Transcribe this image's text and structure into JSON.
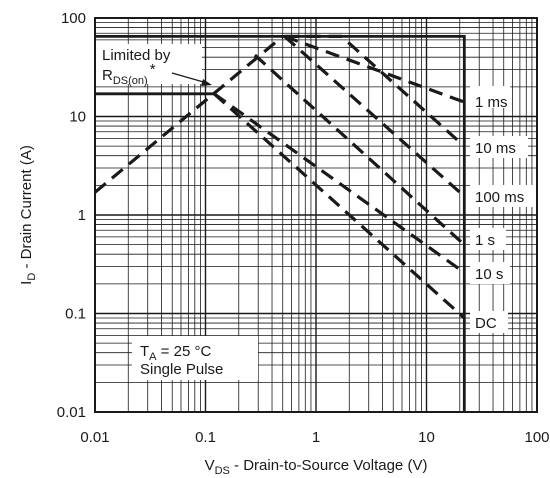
{
  "chart_data": {
    "type": "line",
    "title": "",
    "xlabel": {
      "main": "V",
      "sub": "DS",
      "rest": " - Drain-to-Source Voltage (V)"
    },
    "ylabel": {
      "main": "I",
      "sub": "D",
      "rest": " - Drain Current (A)"
    },
    "x_scale": "log",
    "y_scale": "log",
    "xlim": [
      0.01,
      100
    ],
    "ylim": [
      0.01,
      100
    ],
    "x_ticks": [
      0.01,
      0.1,
      1,
      10,
      100
    ],
    "x_tick_labels": [
      "0.01",
      "0.1",
      "1",
      "10",
      "100"
    ],
    "y_ticks": [
      0.01,
      0.1,
      1,
      10,
      100
    ],
    "y_tick_labels": [
      "0.01",
      "0.1",
      "1",
      "10",
      "100"
    ],
    "grid": true,
    "series": [
      {
        "name": "1 ms",
        "style": "dashed",
        "points": [
          [
            0.52,
            65
          ],
          [
            22,
            14
          ]
        ]
      },
      {
        "name": "10 ms",
        "style": "dashed",
        "points": [
          [
            0.52,
            65
          ],
          [
            1.7,
            65
          ],
          [
            22,
            5
          ]
        ]
      },
      {
        "name": "100 ms",
        "style": "dashed",
        "points": [
          [
            0.52,
            65
          ],
          [
            22,
            1.55
          ]
        ]
      },
      {
        "name": "1 s",
        "style": "dashed",
        "points": [
          [
            0.28,
            42
          ],
          [
            22,
            0.5
          ]
        ]
      },
      {
        "name": "10 s",
        "style": "dashed",
        "points": [
          [
            0.12,
            17
          ],
          [
            22,
            0.26
          ]
        ]
      },
      {
        "name": "DC",
        "style": "dashed",
        "points": [
          [
            0.12,
            17
          ],
          [
            22,
            0.09
          ]
        ]
      },
      {
        "name": "Limited by RDS(on)",
        "style": "dashed",
        "points": [
          [
            0.01,
            1.7
          ],
          [
            0.5,
            65
          ]
        ]
      },
      {
        "name": "",
        "style": "solid",
        "points": [
          [
            0.01,
            65
          ],
          [
            22,
            65
          ],
          [
            22,
            0.01
          ]
        ]
      },
      {
        "name": "",
        "style": "solid",
        "points": [
          [
            0.01,
            17
          ],
          [
            0.12,
            17
          ]
        ]
      }
    ],
    "annotations": {
      "limited_line1": "Limited by",
      "limited_r": "R",
      "limited_sub": "DS(on)",
      "limited_star": "*",
      "ta_main": "T",
      "ta_sub": "A",
      "ta_rest": " = 25 °C",
      "pulse": "Single Pulse"
    }
  }
}
